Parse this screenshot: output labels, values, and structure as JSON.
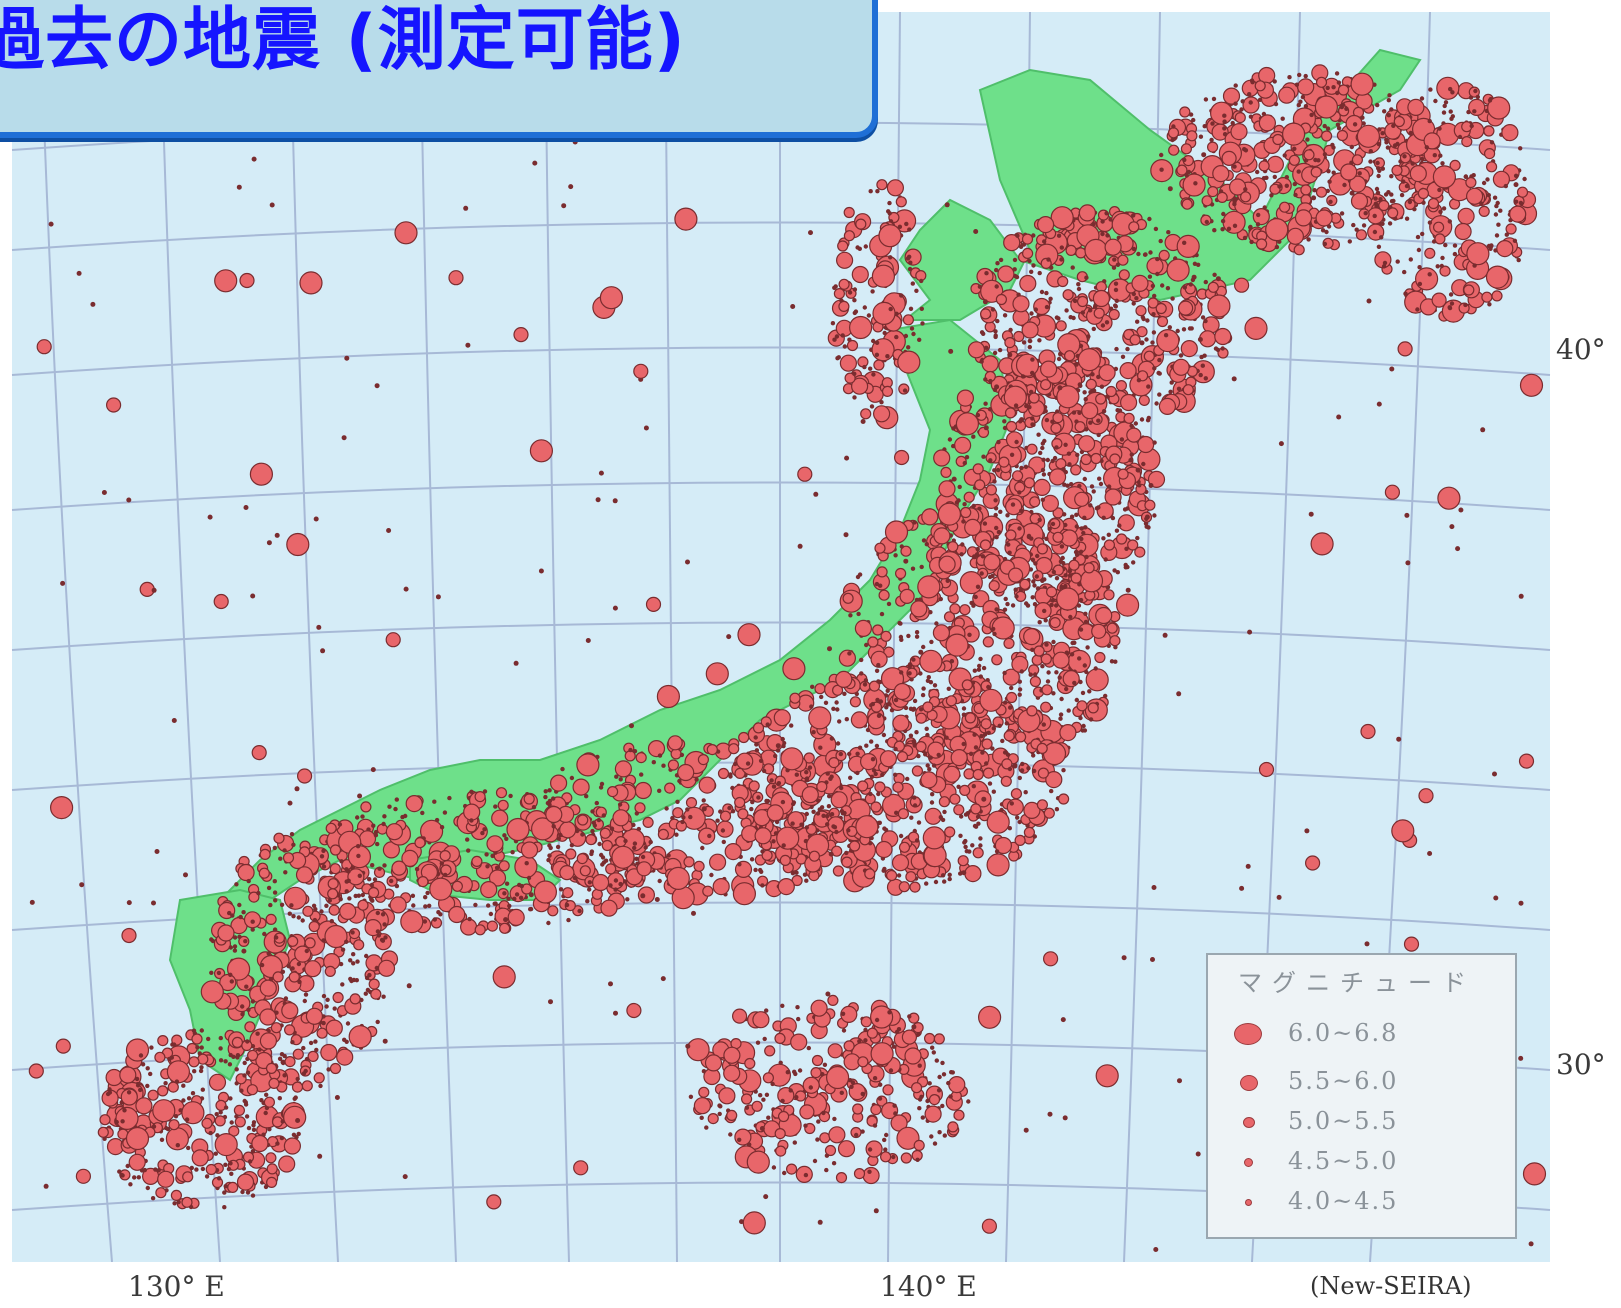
{
  "title": "過去の地震 (測定可能)",
  "legend": {
    "title": "マグニチュード",
    "items": [
      {
        "label": "6.0~6.8"
      },
      {
        "label": "5.5~6.0"
      },
      {
        "label": "5.0~5.5"
      },
      {
        "label": "4.5~5.0"
      },
      {
        "label": "4.0~4.5"
      }
    ]
  },
  "axes": {
    "lon_labels": [
      "130° E",
      "140° E"
    ],
    "lat_labels": [
      "40°",
      "30°"
    ]
  },
  "source": "(New-SEIRA)",
  "colors": {
    "ocean": "#d5ecf7",
    "land": "#6ee08a",
    "quake_fill": "#e8666a",
    "quake_stroke": "#7a2c2f",
    "grid": "#a7b9d6",
    "title_text": "#1515ff",
    "title_border": "#1f6fd6",
    "title_bg": "#b8dcea"
  }
}
